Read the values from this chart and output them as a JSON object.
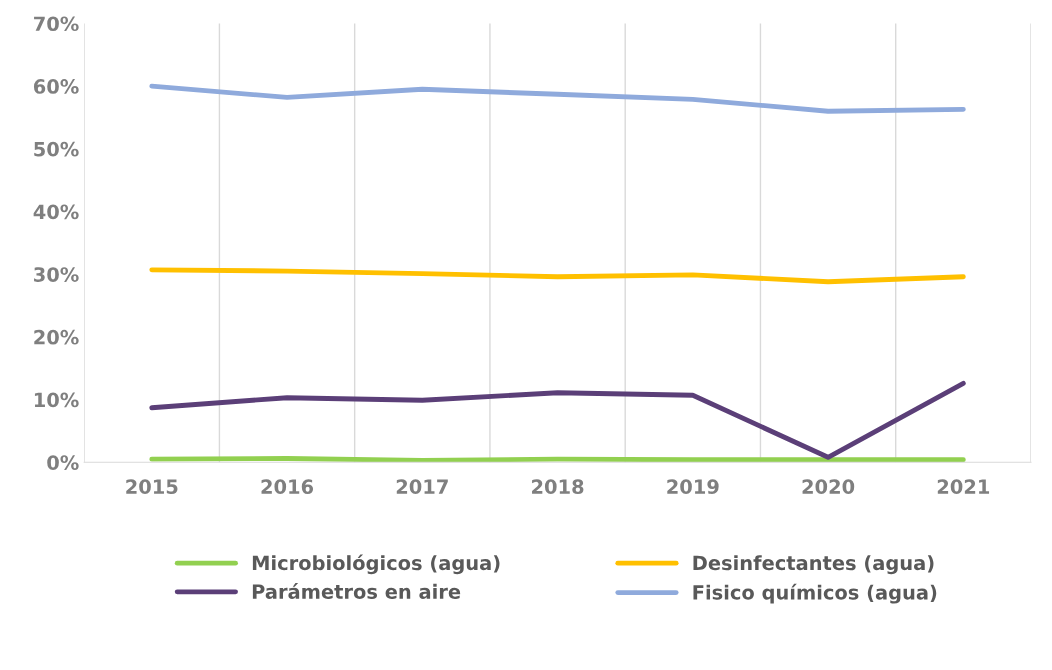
{
  "chart_data": {
    "type": "line",
    "categories": [
      "2015",
      "2016",
      "2017",
      "2018",
      "2019",
      "2020",
      "2021"
    ],
    "series": [
      {
        "name": "Microbiológicos (agua)",
        "color": "#92d050",
        "values": [
          0.5,
          0.6,
          0.3,
          0.5,
          0.4,
          0.4,
          0.4
        ]
      },
      {
        "name": "Parámetros en aire",
        "color": "#5b3f78",
        "values": [
          8.7,
          10.3,
          9.9,
          11.1,
          10.7,
          0.8,
          12.6
        ]
      },
      {
        "name": "Desinfectantes (agua)",
        "color": "#ffc000",
        "values": [
          30.7,
          30.5,
          30.1,
          29.6,
          29.9,
          28.8,
          29.6
        ]
      },
      {
        "name": "Fisico químicos (agua)",
        "color": "#8faadc",
        "values": [
          60.0,
          58.2,
          59.5,
          58.7,
          57.9,
          56.0,
          56.3
        ]
      }
    ],
    "ylim": [
      0,
      70
    ],
    "yticks": [
      {
        "value": 0,
        "label": "0%"
      },
      {
        "value": 10,
        "label": "10%"
      },
      {
        "value": 20,
        "label": "20%"
      },
      {
        "value": 30,
        "label": "30%"
      },
      {
        "value": 40,
        "label": "40%"
      },
      {
        "value": 50,
        "label": "50%"
      },
      {
        "value": 60,
        "label": "60%"
      },
      {
        "value": 70,
        "label": "70%"
      }
    ],
    "grid": "x",
    "legend": "bottom",
    "marker": "none",
    "line_style": "solid"
  }
}
